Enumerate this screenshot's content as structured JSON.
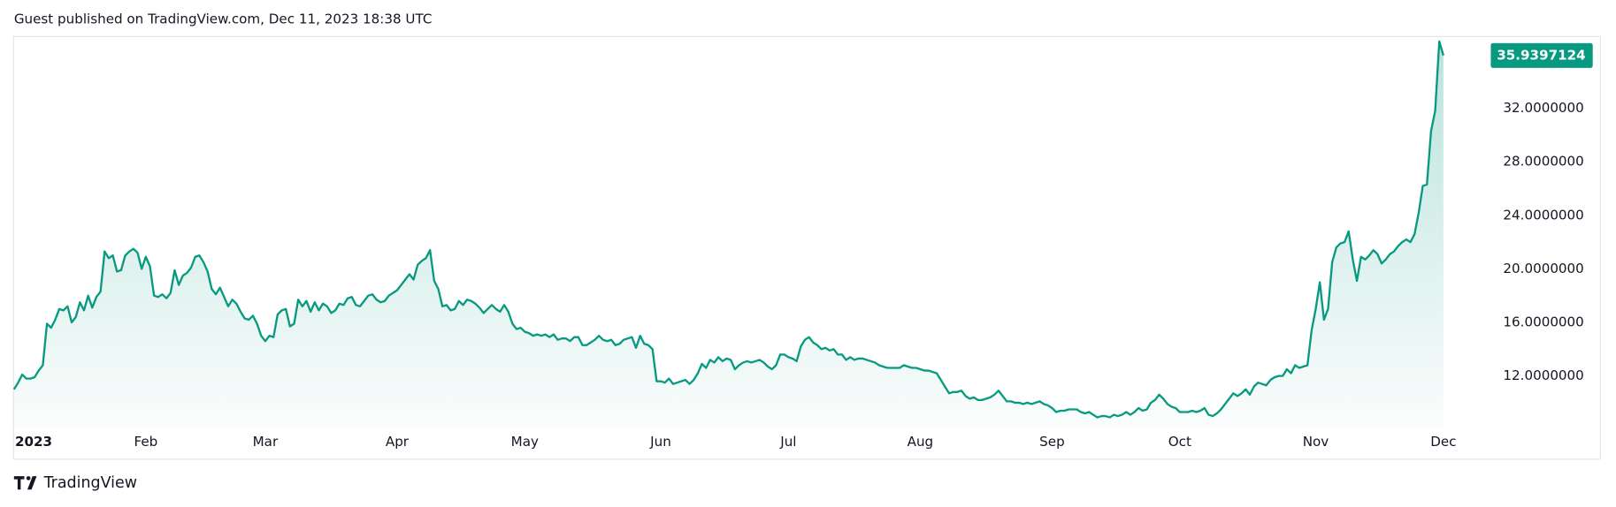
{
  "published": "Guest published on TradingView.com, Dec 11, 2023 18:38 UTC",
  "brand": "TradingView",
  "chart_data": {
    "type": "line",
    "color": "#089981",
    "grid": false,
    "ylim": [
      8.2,
      37.4
    ],
    "yticks": [
      {
        "value": 12,
        "label": "12.0000000"
      },
      {
        "value": 16,
        "label": "16.0000000"
      },
      {
        "value": 20,
        "label": "20.0000000"
      },
      {
        "value": 24,
        "label": "24.0000000"
      },
      {
        "value": 28,
        "label": "28.0000000"
      },
      {
        "value": 32,
        "label": "32.0000000"
      }
    ],
    "xlim": [
      0,
      357
    ],
    "xticks": [
      {
        "value": 0,
        "label": "2023"
      },
      {
        "value": 32,
        "label": "Feb"
      },
      {
        "value": 61,
        "label": "Mar"
      },
      {
        "value": 93,
        "label": "Apr"
      },
      {
        "value": 124,
        "label": "May"
      },
      {
        "value": 157,
        "label": "Jun"
      },
      {
        "value": 188,
        "label": "Jul"
      },
      {
        "value": 220,
        "label": "Aug"
      },
      {
        "value": 252,
        "label": "Sep"
      },
      {
        "value": 283,
        "label": "Oct"
      },
      {
        "value": 316,
        "label": "Nov"
      },
      {
        "value": 347,
        "label": "Dec"
      }
    ],
    "values": [
      11.0,
      11.5,
      12.1,
      11.8,
      11.8,
      11.9,
      12.4,
      12.8,
      15.9,
      15.6,
      16.2,
      17.0,
      16.9,
      17.2,
      16.0,
      16.4,
      17.5,
      16.9,
      18.0,
      17.1,
      17.9,
      18.3,
      21.3,
      20.8,
      21.0,
      19.8,
      19.9,
      21.0,
      21.3,
      21.5,
      21.2,
      20.0,
      20.9,
      20.2,
      18.0,
      17.9,
      18.1,
      17.8,
      18.2,
      19.9,
      18.8,
      19.5,
      19.7,
      20.1,
      20.9,
      21.0,
      20.5,
      19.8,
      18.5,
      18.1,
      18.6,
      17.9,
      17.2,
      17.7,
      17.4,
      16.8,
      16.3,
      16.2,
      16.5,
      15.9,
      15.0,
      14.6,
      15.0,
      14.9,
      16.6,
      16.9,
      17.0,
      15.7,
      15.9,
      17.7,
      17.2,
      17.6,
      16.8,
      17.5,
      16.9,
      17.4,
      17.2,
      16.7,
      16.9,
      17.4,
      17.3,
      17.8,
      17.9,
      17.3,
      17.2,
      17.6,
      18.0,
      18.1,
      17.7,
      17.5,
      17.6,
      18.0,
      18.2,
      18.4,
      18.8,
      19.2,
      19.6,
      19.2,
      20.3,
      20.6,
      20.8,
      21.4,
      19.1,
      18.5,
      17.2,
      17.3,
      16.9,
      17.0,
      17.6,
      17.3,
      17.7,
      17.6,
      17.4,
      17.1,
      16.7,
      17.0,
      17.3,
      17.0,
      16.8,
      17.3,
      16.8,
      15.9,
      15.5,
      15.6,
      15.3,
      15.2,
      15.0,
      15.1,
      15.0,
      15.1,
      14.9,
      15.1,
      14.7,
      14.8,
      14.8,
      14.6,
      14.9,
      14.9,
      14.3,
      14.3,
      14.5,
      14.7,
      15.0,
      14.7,
      14.6,
      14.7,
      14.3,
      14.4,
      14.7,
      14.8,
      14.9,
      14.1,
      15.0,
      14.4,
      14.3,
      14.0,
      11.6,
      11.6,
      11.5,
      11.8,
      11.4,
      11.5,
      11.6,
      11.7,
      11.4,
      11.7,
      12.2,
      12.9,
      12.6,
      13.2,
      13.0,
      13.4,
      13.1,
      13.3,
      13.2,
      12.5,
      12.8,
      13.0,
      13.1,
      13.0,
      13.1,
      13.2,
      13.0,
      12.7,
      12.5,
      12.8,
      13.6,
      13.6,
      13.4,
      13.3,
      13.1,
      14.2,
      14.7,
      14.9,
      14.5,
      14.3,
      14.0,
      14.1,
      13.9,
      14.0,
      13.6,
      13.6,
      13.2,
      13.4,
      13.2,
      13.3,
      13.3,
      13.2,
      13.1,
      13.0,
      12.8,
      12.7,
      12.6,
      12.6,
      12.6,
      12.6,
      12.8,
      12.7,
      12.6,
      12.6,
      12.5,
      12.4,
      12.4,
      12.3,
      12.2,
      11.7,
      11.2,
      10.7,
      10.8,
      10.8,
      10.9,
      10.5,
      10.3,
      10.4,
      10.2,
      10.2,
      10.3,
      10.4,
      10.6,
      10.9,
      10.5,
      10.1,
      10.1,
      10.0,
      10.0,
      9.9,
      10.0,
      9.9,
      10.0,
      10.1,
      9.9,
      9.8,
      9.6,
      9.3,
      9.4,
      9.4,
      9.5,
      9.5,
      9.5,
      9.3,
      9.2,
      9.3,
      9.1,
      8.9,
      9.0,
      9.0,
      8.9,
      9.1,
      9.0,
      9.1,
      9.3,
      9.1,
      9.3,
      9.6,
      9.4,
      9.5,
      10.0,
      10.2,
      10.6,
      10.3,
      9.9,
      9.7,
      9.6,
      9.3,
      9.3,
      9.3,
      9.4,
      9.3,
      9.4,
      9.6,
      9.1,
      9.0,
      9.2,
      9.5,
      9.9,
      10.3,
      10.7,
      10.5,
      10.7,
      11.0,
      10.6,
      11.2,
      11.5,
      11.4,
      11.3,
      11.7,
      11.9,
      12.0,
      12.0,
      12.5,
      12.2,
      12.8,
      12.6,
      12.7,
      12.8,
      15.4,
      17.0,
      19.0,
      16.2,
      17.0,
      20.5,
      21.6,
      21.9,
      22.0,
      22.8,
      20.7,
      19.1,
      20.9,
      20.7,
      21.0,
      21.4,
      21.1,
      20.4,
      20.7,
      21.1,
      21.3,
      21.7,
      22.0,
      22.2,
      22.0,
      22.6,
      24.2,
      26.2,
      26.3,
      30.3,
      31.8,
      37.0,
      35.9397124
    ]
  }
}
